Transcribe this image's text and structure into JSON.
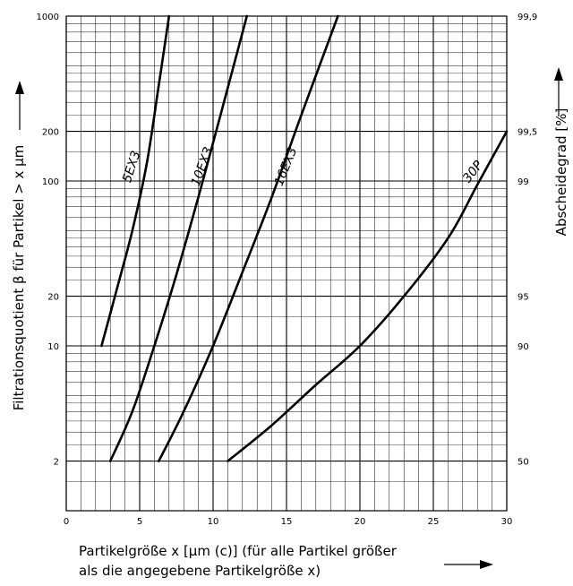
{
  "chart_data": {
    "type": "line",
    "x_scale": "linear",
    "y_scale": "log",
    "xlim": [
      0,
      30
    ],
    "ylim": [
      1,
      1000
    ],
    "xticks": [
      0,
      5,
      10,
      15,
      20,
      25,
      30
    ],
    "xtick_labels": [
      "0",
      "5",
      "10",
      "15",
      "20",
      "25",
      "30"
    ],
    "yticks": [
      1000,
      200,
      100,
      20,
      10,
      2
    ],
    "ytick_labels": [
      "1000",
      "200",
      "100",
      "20",
      "10",
      "2"
    ],
    "right_axis": {
      "ticks_at_beta": [
        1000,
        200,
        100,
        20,
        10,
        2
      ],
      "labels": [
        "99,9",
        "99,5",
        "99",
        "95",
        "90",
        "50"
      ],
      "label": "Abscheidegrad  [%]"
    },
    "xlabel_line1": "Partikelgröße x [µm (c)] (für alle Partikel größer",
    "xlabel_line2": "als die angegebene Partikelgröße x)",
    "ylabel": "Filtrationsquotient β für Partikel > x µm",
    "grid": true,
    "legend": "none",
    "series": [
      {
        "name": "5EX3",
        "x": [
          2.4,
          3.5,
          4.5,
          5.5,
          6.3,
          7.0
        ],
        "y": [
          10,
          23,
          50,
          130,
          380,
          1000
        ]
      },
      {
        "name": "10EX3",
        "x": [
          3.0,
          4.5,
          6.0,
          7.5,
          9.0,
          10.5,
          12.3
        ],
        "y": [
          2,
          4,
          10,
          27,
          80,
          250,
          1000
        ]
      },
      {
        "name": "16EX3",
        "x": [
          6.3,
          8.0,
          10.0,
          12.0,
          14.0,
          16.0,
          18.5
        ],
        "y": [
          2,
          4,
          10,
          28,
          80,
          250,
          1000
        ]
      },
      {
        "name": "30P",
        "x": [
          11.0,
          14.0,
          17.0,
          20.0,
          23.0,
          26.0,
          28.0,
          30.0
        ],
        "y": [
          2,
          3.3,
          5.8,
          10,
          20,
          45,
          95,
          200
        ]
      }
    ],
    "line_color": "#000000",
    "grid_color": "#000000"
  }
}
